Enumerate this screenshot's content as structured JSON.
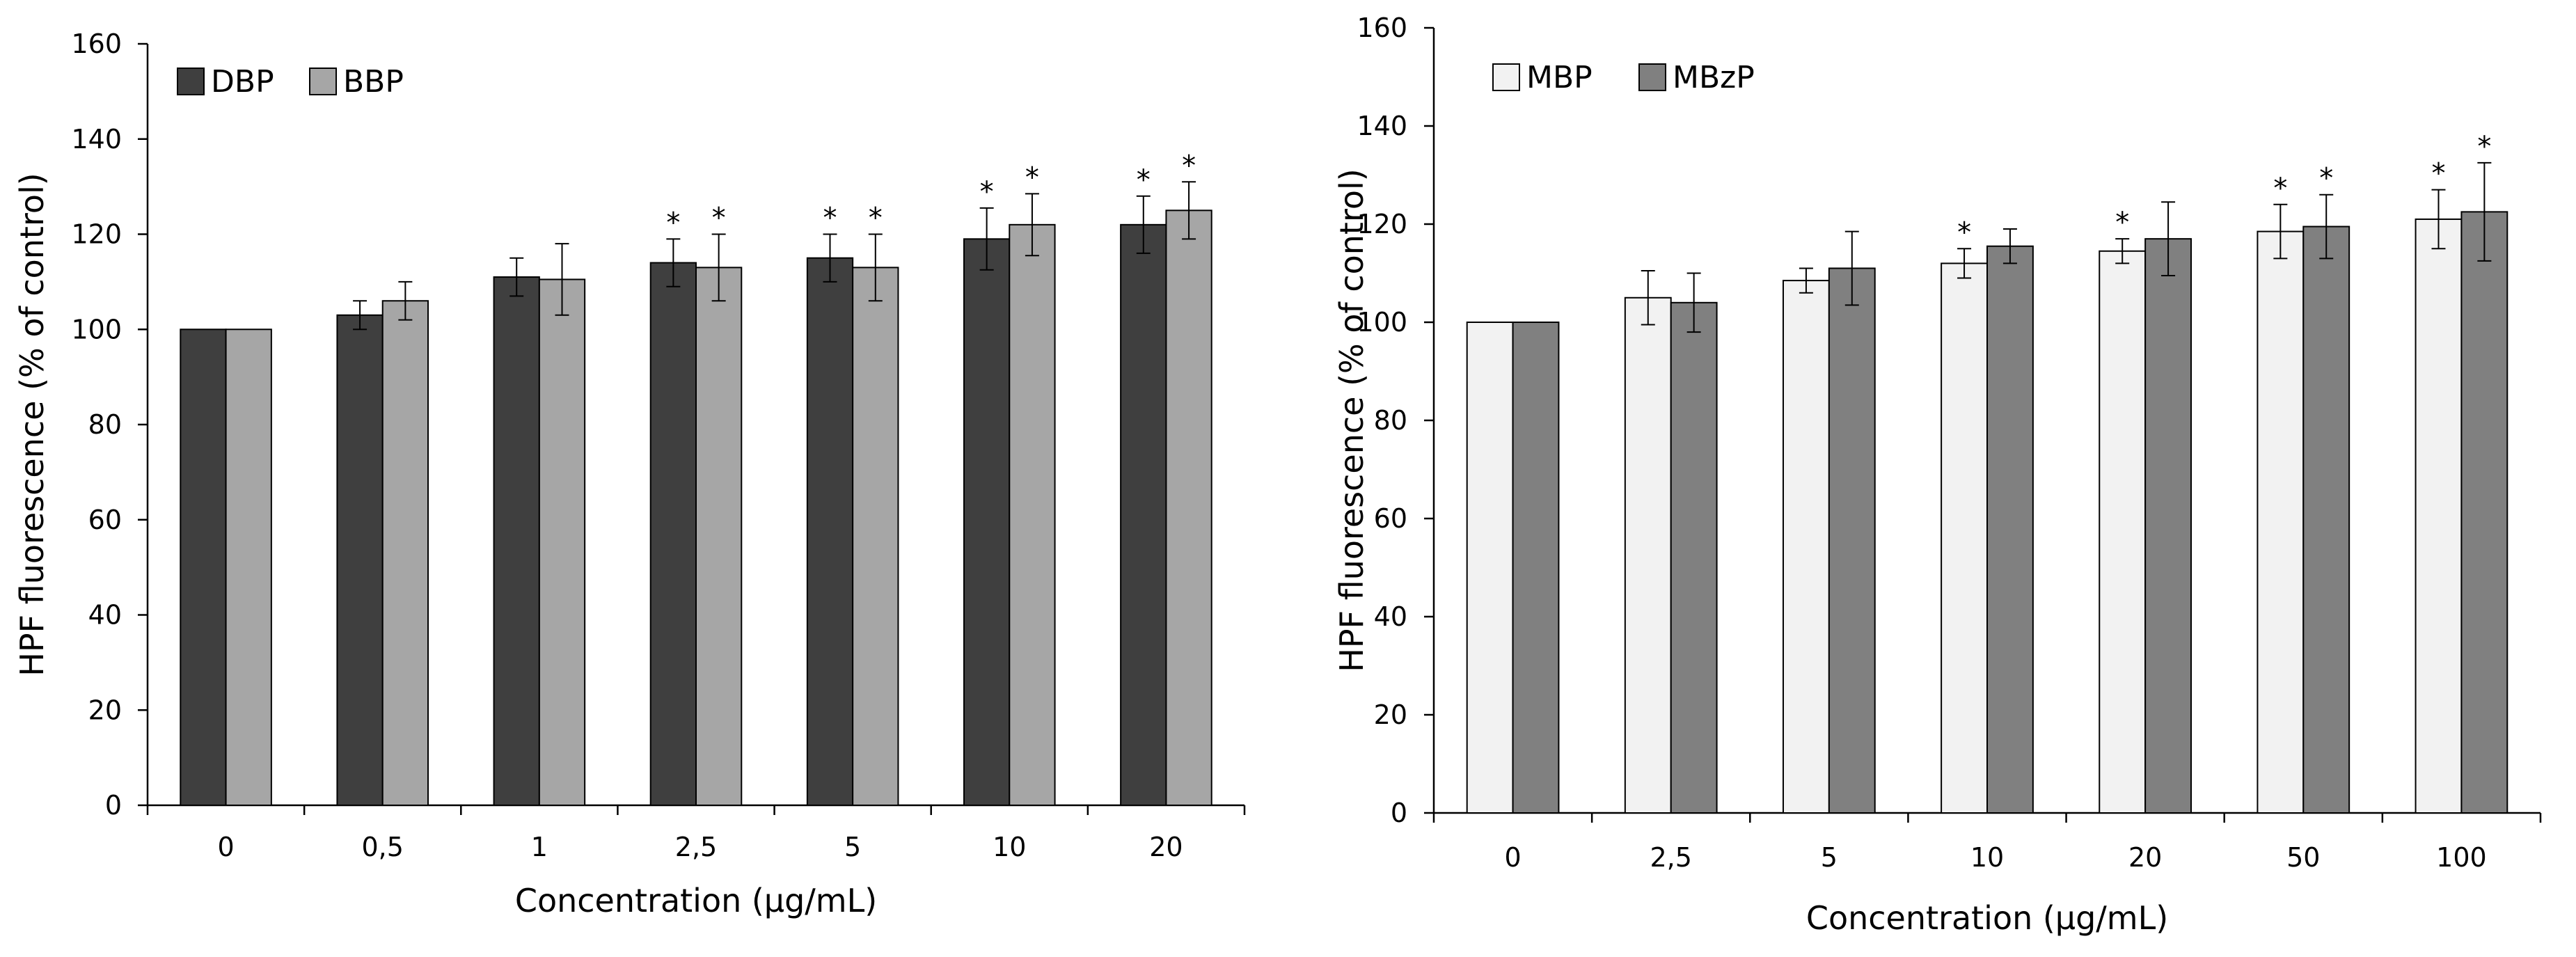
{
  "chart_data": [
    {
      "type": "bar",
      "ylabel": "HPF fluorescence (% of control)",
      "xlabel": "Concentration (µg/mL)",
      "ylim": [
        0,
        160
      ],
      "yticks": [
        0,
        20,
        40,
        60,
        80,
        100,
        120,
        140,
        160
      ],
      "grid": false,
      "legend_position": "top-left",
      "categories": [
        "0",
        "0,5",
        "1",
        "2,5",
        "5",
        "10",
        "20"
      ],
      "significance_marker": "*",
      "series": [
        {
          "name": "DBP",
          "color": "#3f3f3f",
          "values": [
            100,
            103,
            111,
            114,
            115,
            119,
            122
          ],
          "errors": [
            0,
            3,
            4,
            5,
            5,
            6.5,
            6
          ],
          "significant": [
            false,
            false,
            false,
            true,
            true,
            true,
            true
          ]
        },
        {
          "name": "BBP",
          "color": "#a6a6a6",
          "values": [
            100,
            106,
            110.5,
            113,
            113,
            122,
            125
          ],
          "errors": [
            0,
            4,
            7.5,
            7,
            7,
            6.5,
            6
          ],
          "significant": [
            false,
            false,
            false,
            true,
            true,
            true,
            true
          ]
        }
      ]
    },
    {
      "type": "bar",
      "ylabel": "HPF fluorescence (% of control)",
      "xlabel": "Concentration (µg/mL)",
      "ylim": [
        0,
        160
      ],
      "yticks": [
        0,
        20,
        40,
        60,
        80,
        100,
        120,
        140,
        160
      ],
      "grid": false,
      "legend_position": "top-left",
      "categories": [
        "0",
        "2,5",
        "5",
        "10",
        "20",
        "50",
        "100"
      ],
      "significance_marker": "*",
      "series": [
        {
          "name": "MBP",
          "color": "#f2f2f2",
          "values": [
            100,
            105,
            108.5,
            112,
            114.5,
            118.5,
            121
          ],
          "errors": [
            0,
            5.5,
            2.5,
            3,
            2.5,
            5.5,
            6
          ],
          "significant": [
            false,
            false,
            false,
            true,
            true,
            true,
            true
          ]
        },
        {
          "name": "MBzP",
          "color": "#808080",
          "values": [
            100,
            104,
            111,
            115.5,
            117,
            119.5,
            122.5
          ],
          "errors": [
            0,
            6,
            7.5,
            3.5,
            7.5,
            6.5,
            10
          ],
          "significant": [
            false,
            false,
            false,
            false,
            false,
            true,
            true
          ]
        }
      ]
    }
  ]
}
